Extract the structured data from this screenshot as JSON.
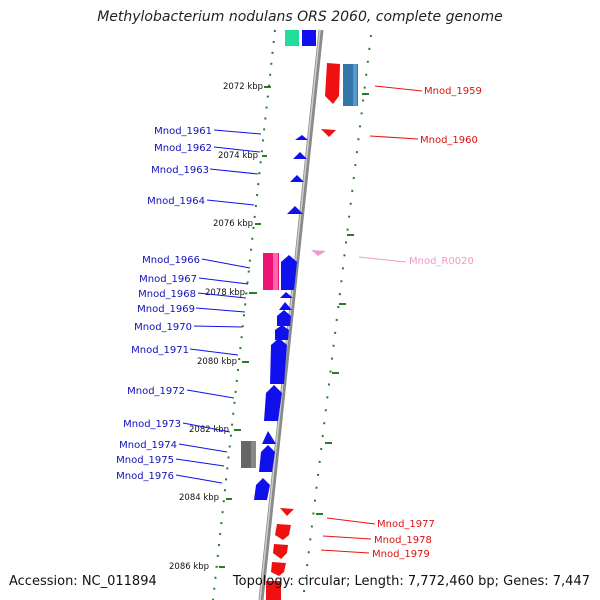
{
  "title": "Methylobacterium nodulans ORS 2060, complete genome",
  "accession": "Accession: NC_011894",
  "topology": "Topology: circular; Length: 7,772,460 bp; Genes: 7,447",
  "colors": {
    "forward_gene": "#1010ee",
    "reverse_gene": "#ee1111",
    "rrna_label": "#ee88cc",
    "hypothetical": "#ee1177",
    "pseudo": "#666666",
    "teal": "#2266aa",
    "backbone": "#999999",
    "scale_dots": "#2a7a2a"
  },
  "scale_ticks": [
    "2072 kbp",
    "2074 kbp",
    "2076 kbp",
    "2078 kbp",
    "2080 kbp",
    "2082 kbp",
    "2084 kbp",
    "2086 kbp"
  ],
  "genes_left": [
    "Mnod_1961",
    "Mnod_1962",
    "Mnod_1963",
    "Mnod_1964",
    "Mnod_1966",
    "Mnod_1967",
    "Mnod_1968",
    "Mnod_1969",
    "Mnod_1970",
    "Mnod_1971",
    "Mnod_1972",
    "Mnod_1973",
    "Mnod_1974",
    "Mnod_1975",
    "Mnod_1976"
  ],
  "genes_right": [
    "Mnod_1959",
    "Mnod_1960",
    "Mnod_R0020",
    "Mnod_1977",
    "Mnod_1978",
    "Mnod_1979"
  ]
}
